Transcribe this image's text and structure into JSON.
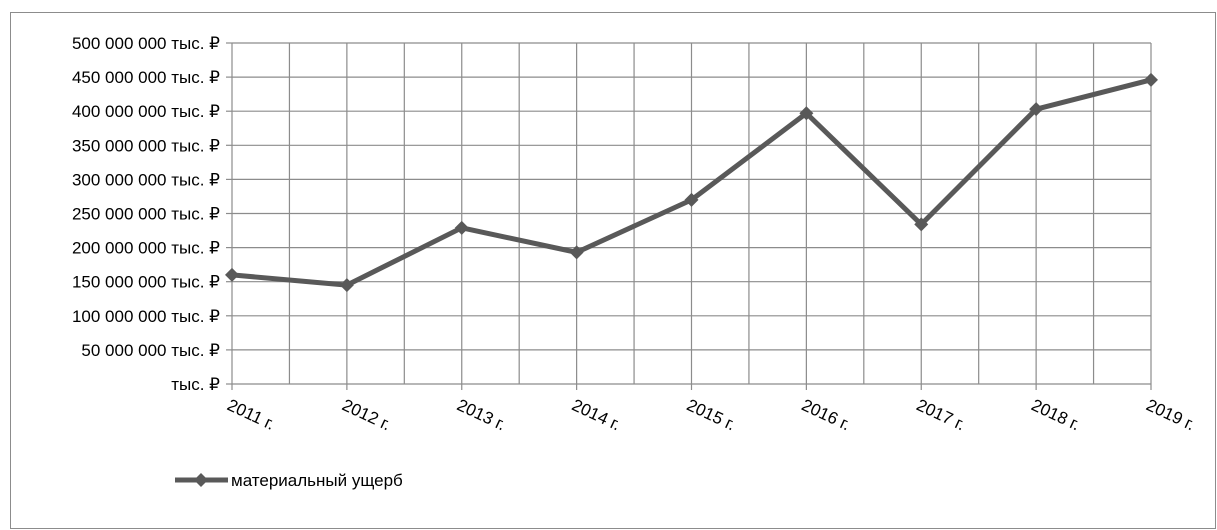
{
  "chart_data": {
    "type": "line",
    "title": "",
    "xlabel": "",
    "ylabel": "",
    "categories": [
      "2011 г.",
      "2012 г.",
      "2013 г.",
      "2014 г.",
      "2015 г.",
      "2016 г.",
      "2017 г.",
      "2018 г.",
      "2019 г."
    ],
    "series": [
      {
        "name": "материальный ущерб",
        "values": [
          160000000,
          145000000,
          229000000,
          193000000,
          270000000,
          397000000,
          234000000,
          403000000,
          446000000
        ],
        "color": "#595959"
      }
    ],
    "ylim": [
      0,
      500000000
    ],
    "y_ticks": [
      0,
      50000000,
      100000000,
      150000000,
      200000000,
      250000000,
      300000000,
      350000000,
      400000000,
      450000000,
      500000000
    ],
    "y_tick_labels": [
      "тыс. ₽",
      "50 000 000 тыс. ₽",
      "100 000 000 тыс. ₽",
      "150 000 000 тыс. ₽",
      "200 000 000 тыс. ₽",
      "250 000 000 тыс. ₽",
      "300 000 000 тыс. ₽",
      "350 000 000 тыс. ₽",
      "400 000 000 тыс. ₽",
      "450 000 000 тыс. ₽",
      "500 000 000 тыс. ₽"
    ],
    "grid": true,
    "legend_position": "bottom-left",
    "marker": "diamond"
  }
}
